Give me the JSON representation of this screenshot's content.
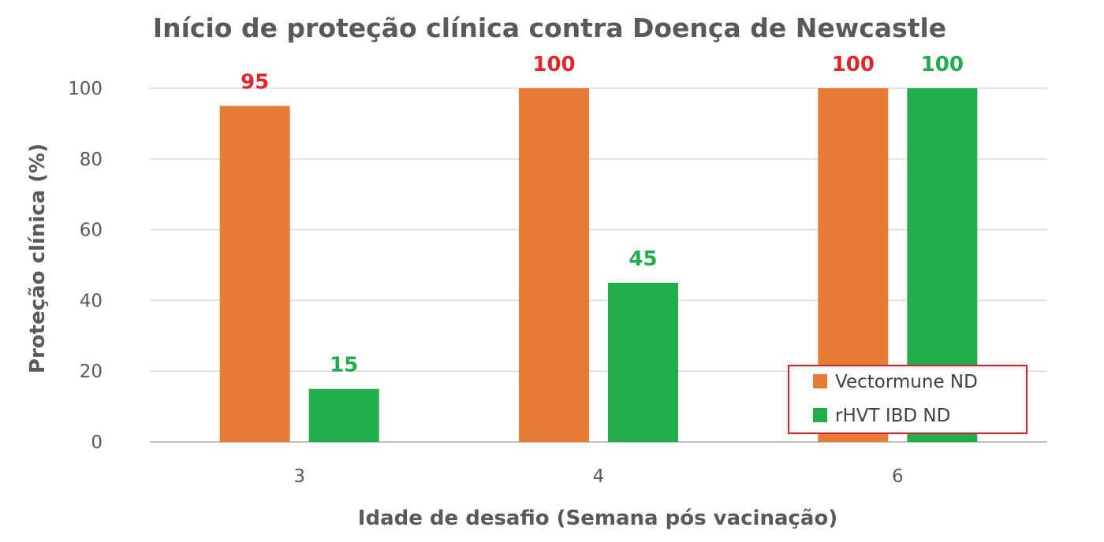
{
  "chart_data": {
    "type": "bar",
    "title": "Início de proteção clínica contra Doença de Newcastle",
    "xlabel": "Idade de desafio (Semana pós vacinação)",
    "ylabel": "Proteção clínica (%)",
    "categories": [
      "3",
      "4",
      "6"
    ],
    "ylim": [
      0,
      100
    ],
    "yticks": [
      0,
      20,
      40,
      60,
      80,
      100
    ],
    "grid": true,
    "legend_position": "bottom-right",
    "series": [
      {
        "name": "Vectormune ND",
        "values": [
          95,
          100,
          100
        ],
        "color": "#E67C35",
        "label_color": "#E3252B"
      },
      {
        "name": "rHVT IBD ND",
        "values": [
          15,
          45,
          100
        ],
        "color": "#21AC4E",
        "label_color": "#21AC4E"
      }
    ]
  }
}
